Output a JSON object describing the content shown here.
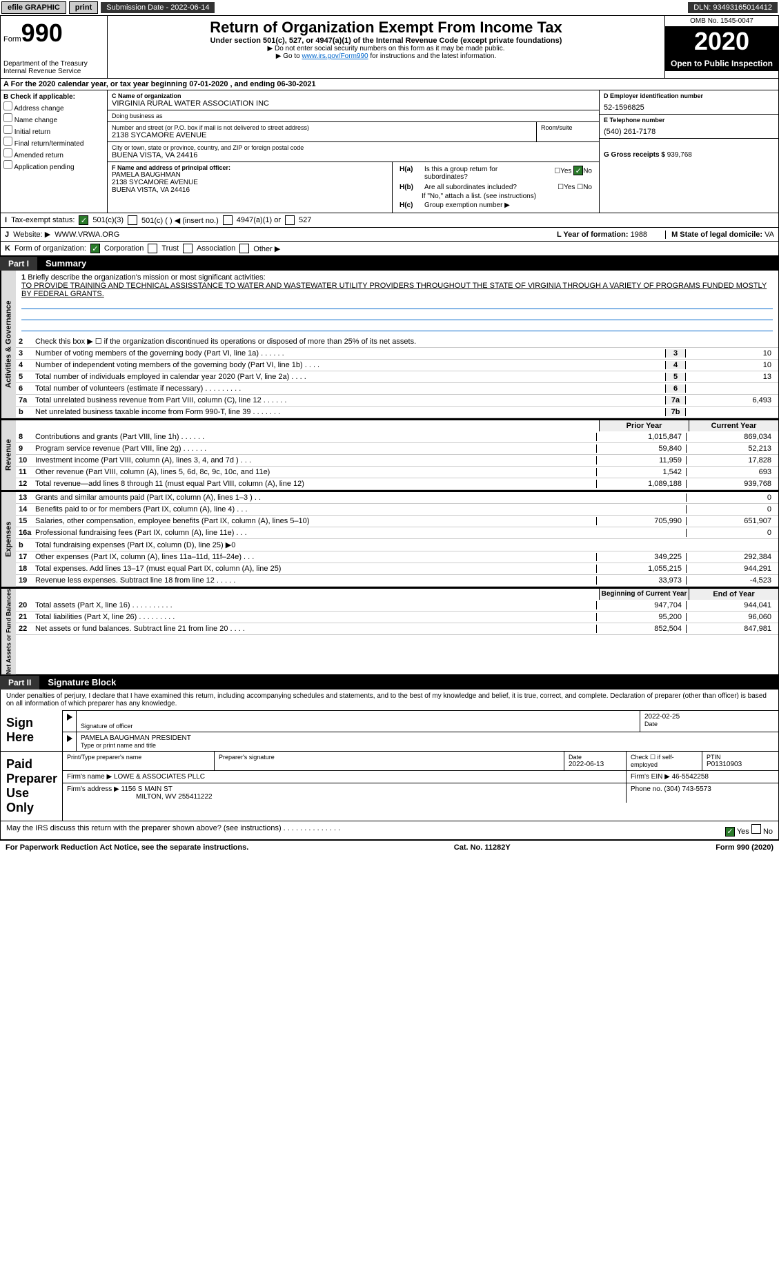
{
  "topbar": {
    "efile": "efile GRAPHIC",
    "print": "print",
    "sub_label": "Submission Date - ",
    "sub_date": "2022-06-14",
    "dln_label": "DLN: ",
    "dln": "93493165014412"
  },
  "header": {
    "form_label": "Form",
    "form_num": "990",
    "dept": "Department of the Treasury\nInternal Revenue Service",
    "title": "Return of Organization Exempt From Income Tax",
    "subtitle": "Under section 501(c), 527, or 4947(a)(1) of the Internal Revenue Code (except private foundations)",
    "note1": "▶ Do not enter social security numbers on this form as it may be made public.",
    "note2_pre": "▶ Go to ",
    "note2_link": "www.irs.gov/Form990",
    "note2_post": " for instructions and the latest information.",
    "omb": "OMB No. 1545-0047",
    "year": "2020",
    "inspect": "Open to Public Inspection"
  },
  "period": {
    "label_a": "A For the 2020 calendar year, or tax year beginning ",
    "begin": "07-01-2020",
    "label_b": " , and ending ",
    "end": "06-30-2021"
  },
  "boxB": {
    "label": "B Check if applicable:",
    "opts": [
      "Address change",
      "Name change",
      "Initial return",
      "Final return/terminated",
      "Amended return",
      "Application pending"
    ]
  },
  "boxC": {
    "name_lbl": "C Name of organization",
    "name": "VIRGINIA RURAL WATER ASSOCIATION INC",
    "dba_lbl": "Doing business as",
    "dba": "",
    "addr_lbl": "Number and street (or P.O. box if mail is not delivered to street address)",
    "room_lbl": "Room/suite",
    "addr": "2138 SYCAMORE AVENUE",
    "city_lbl": "City or town, state or province, country, and ZIP or foreign postal code",
    "city": "BUENA VISTA, VA  24416"
  },
  "boxD": {
    "lbl": "D Employer identification number",
    "val": "52-1596825"
  },
  "boxE": {
    "lbl": "E Telephone number",
    "val": "(540) 261-7178"
  },
  "boxG": {
    "lbl": "G Gross receipts $ ",
    "val": "939,768"
  },
  "boxF": {
    "lbl": "F Name and address of principal officer:",
    "name": "PAMELA BAUGHMAN",
    "addr1": "2138 SYCAMORE AVENUE",
    "addr2": "BUENA VISTA, VA  24416"
  },
  "boxH": {
    "a_lbl": "H(a)",
    "a_txt": "Is this a group return for subordinates?",
    "a_yes": "Yes",
    "a_no": "No",
    "b_lbl": "H(b)",
    "b_txt": "Are all subordinates included?",
    "b_yes": "Yes",
    "b_no": "No",
    "b_note": "If \"No,\" attach a list. (see instructions)",
    "c_lbl": "H(c)",
    "c_txt": "Group exemption number ▶"
  },
  "rowI": {
    "lbl": "I",
    "txt": "Tax-exempt status:",
    "o1": "501(c)(3)",
    "o2": "501(c) (  ) ◀ (insert no.)",
    "o3": "4947(a)(1) or",
    "o4": "527"
  },
  "rowJ": {
    "lbl": "J",
    "txt": "Website: ▶",
    "val": "WWW.VRWA.ORG"
  },
  "rowK": {
    "lbl": "K",
    "txt": "Form of organization:",
    "o1": "Corporation",
    "o2": "Trust",
    "o3": "Association",
    "o4": "Other ▶"
  },
  "rowL": {
    "lbl": "L Year of formation: ",
    "val": "1988"
  },
  "rowM": {
    "lbl": "M State of legal domicile: ",
    "val": "VA"
  },
  "part1": {
    "tag": "Part I",
    "name": "Summary"
  },
  "mission": {
    "lbl": "1",
    "pre": "Briefly describe the organization's mission or most significant activities:",
    "txt": "TO PROVIDE TRAINING AND TECHNICAL ASSISSTANCE TO WATER AND WASTEWATER UTILITY PROVIDERS THROUGHOUT THE STATE OF VIRGINIA THROUGH A VARIETY OF PROGRAMS FUNDED MOSTLY BY FEDERAL GRANTS."
  },
  "line2": {
    "num": "2",
    "txt": "Check this box ▶ ☐ if the organization discontinued its operations or disposed of more than 25% of its net assets."
  },
  "vtabs": {
    "gov": "Activities & Governance",
    "rev": "Revenue",
    "exp": "Expenses",
    "net": "Net Assets or Fund Balances"
  },
  "cols": {
    "prior": "Prior Year",
    "current": "Current Year",
    "boy": "Beginning of Current Year",
    "eoy": "End of Year"
  },
  "gov_lines": [
    {
      "n": "3",
      "t": "Number of voting members of the governing body (Part VI, line 1a)   .    .    .    .    .    .",
      "b": "3",
      "v": "10"
    },
    {
      "n": "4",
      "t": "Number of independent voting members of the governing body (Part VI, line 1b)  .    .    .    .",
      "b": "4",
      "v": "10"
    },
    {
      "n": "5",
      "t": "Total number of individuals employed in calendar year 2020 (Part V, line 2a)   .    .    .    .",
      "b": "5",
      "v": "13"
    },
    {
      "n": "6",
      "t": "Total number of volunteers (estimate if necessary)  .    .    .    .    .    .    .    .    .",
      "b": "6",
      "v": ""
    },
    {
      "n": "7a",
      "t": "Total unrelated business revenue from Part VIII, column (C), line 12  .    .    .    .    .    .",
      "b": "7a",
      "v": "6,493"
    },
    {
      "n": "b",
      "t": "Net unrelated business taxable income from Form 990-T, line 39  .    .    .    .    .    .    .",
      "b": "7b",
      "v": ""
    }
  ],
  "rev_lines": [
    {
      "n": "8",
      "t": "Contributions and grants (Part VIII, line 1h)   .    .    .    .    .    .",
      "p": "1,015,847",
      "c": "869,034"
    },
    {
      "n": "9",
      "t": "Program service revenue (Part VIII, line 2g)   .    .    .    .    .    .",
      "p": "59,840",
      "c": "52,213"
    },
    {
      "n": "10",
      "t": "Investment income (Part VIII, column (A), lines 3, 4, and 7d )  .    .    .",
      "p": "11,959",
      "c": "17,828"
    },
    {
      "n": "11",
      "t": "Other revenue (Part VIII, column (A), lines 5, 6d, 8c, 9c, 10c, and 11e)",
      "p": "1,542",
      "c": "693"
    },
    {
      "n": "12",
      "t": "Total revenue—add lines 8 through 11 (must equal Part VIII, column (A), line 12)",
      "p": "1,089,188",
      "c": "939,768"
    }
  ],
  "exp_lines": [
    {
      "n": "13",
      "t": "Grants and similar amounts paid (Part IX, column (A), lines 1–3 )  .    .",
      "p": "",
      "c": "0"
    },
    {
      "n": "14",
      "t": "Benefits paid to or for members (Part IX, column (A), line 4)  .    .    .",
      "p": "",
      "c": "0"
    },
    {
      "n": "15",
      "t": "Salaries, other compensation, employee benefits (Part IX, column (A), lines 5–10)",
      "p": "705,990",
      "c": "651,907"
    },
    {
      "n": "16a",
      "t": "Professional fundraising fees (Part IX, column (A), line 11e)  .    .    .",
      "p": "",
      "c": "0"
    },
    {
      "n": "b",
      "t": "Total fundraising expenses (Part IX, column (D), line 25) ▶0",
      "p": "",
      "c": "",
      "gray": true
    },
    {
      "n": "17",
      "t": "Other expenses (Part IX, column (A), lines 11a–11d, 11f–24e)   .    .    .",
      "p": "349,225",
      "c": "292,384"
    },
    {
      "n": "18",
      "t": "Total expenses. Add lines 13–17 (must equal Part IX, column (A), line 25)",
      "p": "1,055,215",
      "c": "944,291"
    },
    {
      "n": "19",
      "t": "Revenue less expenses. Subtract line 18 from line 12  .    .    .    .    .",
      "p": "33,973",
      "c": "-4,523"
    }
  ],
  "net_lines": [
    {
      "n": "20",
      "t": "Total assets (Part X, line 16)  .    .    .    .    .    .    .    .    .    .",
      "p": "947,704",
      "c": "944,041"
    },
    {
      "n": "21",
      "t": "Total liabilities (Part X, line 26)   .    .    .    .    .    .    .    .    .",
      "p": "95,200",
      "c": "96,060"
    },
    {
      "n": "22",
      "t": "Net assets or fund balances. Subtract line 21 from line 20  .    .    .    .",
      "p": "852,504",
      "c": "847,981"
    }
  ],
  "part2": {
    "tag": "Part II",
    "name": "Signature Block"
  },
  "sig": {
    "decl": "Under penalties of perjury, I declare that I have examined this return, including accompanying schedules and statements, and to the best of my knowledge and belief, it is true, correct, and complete. Declaration of preparer (other than officer) is based on all information of which preparer has any knowledge.",
    "sign_here": "Sign Here",
    "sig_of_officer": "Signature of officer",
    "sig_date": "2022-02-25",
    "date_lbl": "Date",
    "officer_name": "PAMELA BAUGHMAN  PRESIDENT",
    "type_name": "Type or print name and title",
    "paid": "Paid Preparer Use Only",
    "prep_name_lbl": "Print/Type preparer's name",
    "prep_sig_lbl": "Preparer's signature",
    "prep_date_lbl": "Date",
    "prep_date": "2022-06-13",
    "self_emp": "Check ☐ if self-employed",
    "ptin_lbl": "PTIN",
    "ptin": "P01310903",
    "firm_name_lbl": "Firm's name   ▶ ",
    "firm_name": "LOWE & ASSOCIATES PLLC",
    "firm_ein_lbl": "Firm's EIN ▶ ",
    "firm_ein": "46-5542258",
    "firm_addr_lbl": "Firm's address ▶ ",
    "firm_addr": "1156 S MAIN ST",
    "firm_city": "MILTON, WV  255411222",
    "phone_lbl": "Phone no. ",
    "phone": "(304) 743-5573",
    "discuss": "May the IRS discuss this return with the preparer shown above? (see instructions)   .    .    .    .    .    .    .    .    .    .    .    .    .    .",
    "yes": "Yes",
    "no": "No"
  },
  "footer": {
    "pra": "For Paperwork Reduction Act Notice, see the separate instructions.",
    "cat": "Cat. No. 11282Y",
    "form": "Form 990 (2020)"
  },
  "colors": {
    "link": "#0066cc",
    "dark": "#000000",
    "check_on": "#2a7a2a"
  }
}
